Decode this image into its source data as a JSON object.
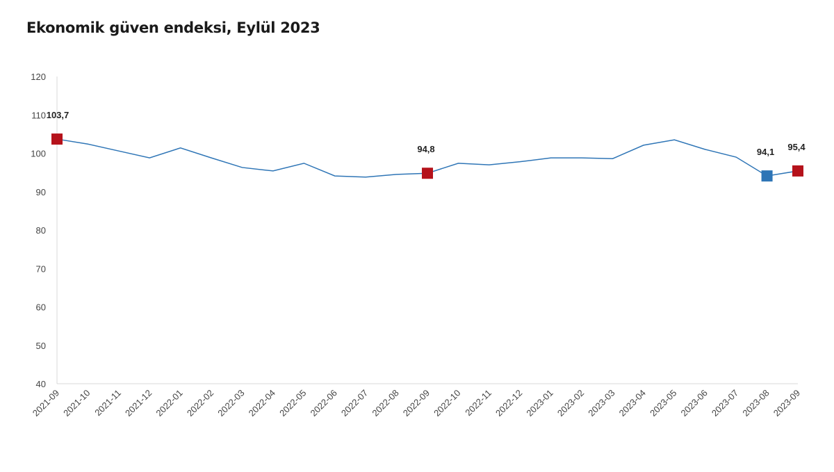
{
  "chart_data": {
    "type": "line",
    "title": "Ekonomik güven endeksi, Eylül 2023",
    "xlabel": "",
    "ylabel": "",
    "ylim": [
      40,
      120
    ],
    "yticks": [
      "40",
      "50",
      "60",
      "70",
      "80",
      "90",
      "100",
      "110",
      "120"
    ],
    "grid": false,
    "categories": [
      "2021-09",
      "2021-10",
      "2021-11",
      "2021-12",
      "2022-01",
      "2022-02",
      "2022-03",
      "2022-04",
      "2022-05",
      "2022-06",
      "2022-07",
      "2022-08",
      "2022-09",
      "2022-10",
      "2022-11",
      "2022-12",
      "2023-01",
      "2023-02",
      "2023-03",
      "2023-04",
      "2023-05",
      "2023-06",
      "2023-07",
      "2023-08",
      "2023-09"
    ],
    "series": [
      {
        "name": "Ekonomik güven endeksi",
        "color": "#2e75b6",
        "values": [
          103.7,
          102.4,
          100.6,
          98.8,
          101.4,
          98.8,
          96.3,
          95.4,
          97.4,
          94.1,
          93.8,
          94.5,
          94.8,
          97.4,
          97.0,
          97.8,
          98.8,
          98.8,
          98.6,
          102.1,
          103.5,
          101.0,
          99.0,
          94.1,
          95.4
        ]
      }
    ],
    "highlighted_points": [
      {
        "index": 0,
        "label": "103,7",
        "color": "#b5121b"
      },
      {
        "index": 12,
        "label": "94,8",
        "color": "#b5121b"
      },
      {
        "index": 23,
        "label": "94,1",
        "color": "#2e75b6"
      },
      {
        "index": 24,
        "label": "95,4",
        "color": "#b5121b"
      }
    ]
  }
}
